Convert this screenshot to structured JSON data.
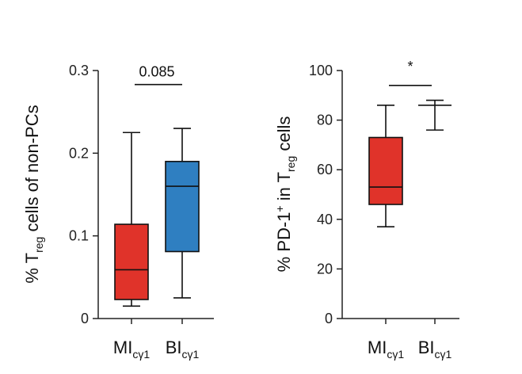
{
  "chart_data": [
    {
      "type": "box",
      "ylabel": {
        "prefix": "% T",
        "sub": "reg",
        "suffix": " cells of non-PCs"
      },
      "ylim": [
        0,
        0.3
      ],
      "yticks": [
        0,
        0.1,
        0.2,
        0.3
      ],
      "ytick_labels": [
        "0",
        "0.1",
        "0.2",
        "0.3"
      ],
      "categories": [
        {
          "main": "MI",
          "sub": "cγ1"
        },
        {
          "main": "BI",
          "sub": "cγ1"
        }
      ],
      "boxes": [
        {
          "whisker_low": 0.015,
          "q1": 0.023,
          "median": 0.059,
          "q3": 0.114,
          "whisker_high": 0.225,
          "color": "#e0332a"
        },
        {
          "whisker_low": 0.025,
          "q1": 0.081,
          "median": 0.16,
          "q3": 0.19,
          "whisker_high": 0.23,
          "color": "#2f7fc1"
        }
      ],
      "significance": {
        "label": "0.085",
        "y": 0.283
      }
    },
    {
      "type": "box",
      "ylabel": {
        "prefix": "% PD-1",
        "sup": "+",
        "mid": " in T",
        "sub": "reg",
        "suffix": " cells"
      },
      "ylim": [
        0,
        100
      ],
      "yticks": [
        0,
        20,
        40,
        60,
        80,
        100
      ],
      "ytick_labels": [
        "0",
        "20",
        "40",
        "60",
        "80",
        "100"
      ],
      "categories": [
        {
          "main": "MI",
          "sub": "cγ1"
        },
        {
          "main": "BI",
          "sub": "cγ1"
        }
      ],
      "boxes": [
        {
          "whisker_low": 37,
          "q1": 46,
          "median": 53,
          "q3": 73,
          "whisker_high": 86,
          "color": "#e0332a"
        },
        {
          "whisker_low": 76,
          "q1": 86,
          "median": 86,
          "q3": 86,
          "whisker_high": 88,
          "color": "#ffffff"
        }
      ],
      "significance": {
        "label": "*",
        "y": 94
      }
    }
  ]
}
